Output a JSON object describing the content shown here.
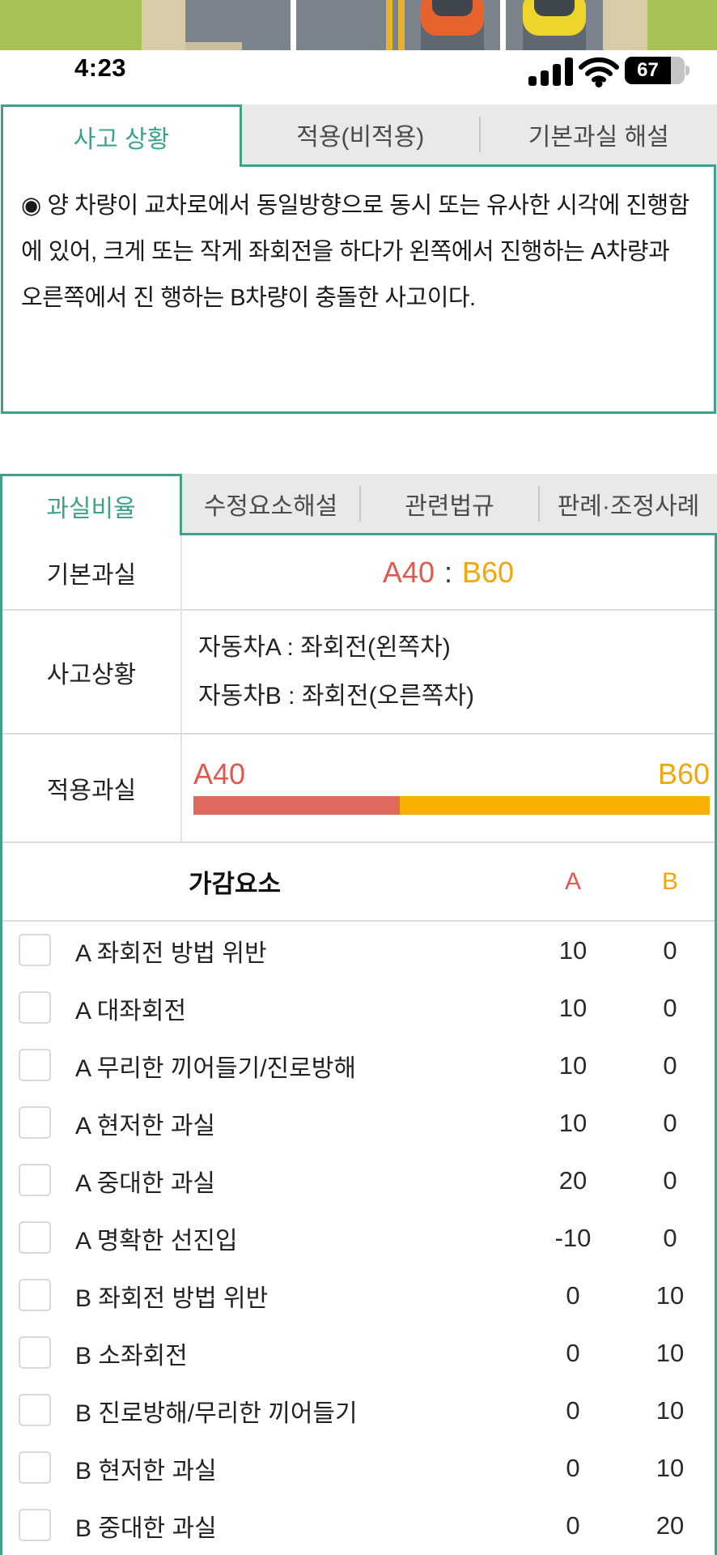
{
  "status_bar": {
    "time": "4:23",
    "battery_level": "67"
  },
  "tabs_primary": [
    {
      "label": "사고 상황",
      "active": true
    },
    {
      "label": "적용(비적용)",
      "active": false
    },
    {
      "label": "기본과실 해설",
      "active": false
    }
  ],
  "description": {
    "text": "◉ 양 차량이 교차로에서 동일방향으로 동시 또는 유사한 시각에 진행함에 있어, 크게 또는 작게 좌회전을 하다가 왼쪽에서 진행하는 A차량과 오른쪽에서 진 행하는 B차량이 충돌한 사고이다."
  },
  "tabs_secondary": [
    {
      "label": "과실비율",
      "active": true
    },
    {
      "label": "수정요소해설",
      "active": false
    },
    {
      "label": "관련법규",
      "active": false
    },
    {
      "label": "판례·조정사례",
      "active": false
    }
  ],
  "fault_table": {
    "basic": {
      "row_label": "기본과실",
      "a": "A40",
      "colon": ":",
      "b": "B60"
    },
    "situation": {
      "row_label": "사고상황",
      "line_a": "자동차A : 좌회전(왼쪽차)",
      "line_b": "자동차B : 좌회전(오른쪽차)"
    },
    "applied": {
      "row_label": "적용과실",
      "a_label": "A40",
      "b_label": "B60",
      "a_percent": 40,
      "b_percent": 60
    }
  },
  "modifiers": {
    "title": "가감요소",
    "col_a": "A",
    "col_b": "B",
    "rows": [
      {
        "label": "A 좌회전 방법 위반",
        "a": "10",
        "b": "0"
      },
      {
        "label": "A 대좌회전",
        "a": "10",
        "b": "0"
      },
      {
        "label": "A 무리한 끼어들기/진로방해",
        "a": "10",
        "b": "0"
      },
      {
        "label": "A 현저한 과실",
        "a": "10",
        "b": "0"
      },
      {
        "label": "A 중대한 과실",
        "a": "20",
        "b": "0"
      },
      {
        "label": "A 명확한 선진입",
        "a": "-10",
        "b": "0"
      },
      {
        "label": "B 좌회전 방법 위반",
        "a": "0",
        "b": "10"
      },
      {
        "label": "B 소좌회전",
        "a": "0",
        "b": "10"
      },
      {
        "label": "B 진로방해/무리한 끼어들기",
        "a": "0",
        "b": "10"
      },
      {
        "label": "B 현저한 과실",
        "a": "0",
        "b": "10"
      },
      {
        "label": "B 중대한 과실",
        "a": "0",
        "b": "20"
      }
    ]
  },
  "colors": {
    "teal": "#3EA28B",
    "red": "#E2584E",
    "orange": "#F2A60E",
    "bar_red": "#E0695E",
    "bar_orange": "#F8B000",
    "tab_bg": "#E9E9E7",
    "tab_text": "#4B4B4B",
    "grass": "#A7C156",
    "sidewalk": "#D8CBA8",
    "road": "#7B838C",
    "car_a": "#E8622D",
    "car_b": "#EDD52B",
    "center_line": "#E7B42C"
  }
}
